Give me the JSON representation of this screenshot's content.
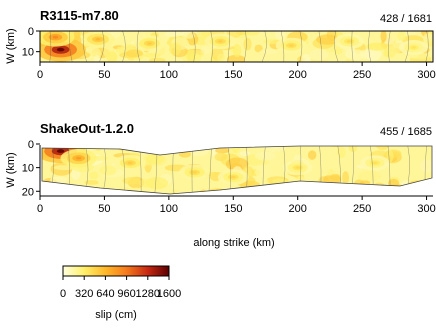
{
  "chart_data": [
    {
      "type": "heatmap",
      "title": "R3115-m7.80",
      "annotation": "428 / 1681",
      "xlabel": "",
      "ylabel": "W (km)",
      "xlim": [
        0,
        305
      ],
      "ylim": [
        0,
        15
      ],
      "x_ticks": [
        "0",
        "50",
        "100",
        "150",
        "200",
        "250",
        "300"
      ],
      "y_ticks": [
        "0",
        "10"
      ],
      "hotspots": [
        {
          "x": 16,
          "y": 9,
          "slip": 1600
        },
        {
          "x": 12,
          "y": 3,
          "slip": 900
        },
        {
          "x": 45,
          "y": 4,
          "slip": 650
        },
        {
          "x": 85,
          "y": 6,
          "slip": 550
        },
        {
          "x": 140,
          "y": 5,
          "slip": 520
        },
        {
          "x": 195,
          "y": 7,
          "slip": 500
        },
        {
          "x": 240,
          "y": 5,
          "slip": 450
        },
        {
          "x": 290,
          "y": 8,
          "slip": 400
        }
      ]
    },
    {
      "type": "heatmap",
      "title": "ShakeOut-1.2.0",
      "annotation": "455 / 1685",
      "xlabel": "along strike (km)",
      "ylabel": "W (km)",
      "xlim": [
        0,
        305
      ],
      "ylim": [
        0,
        22
      ],
      "x_ticks": [
        "0",
        "50",
        "100",
        "150",
        "200",
        "250",
        "300"
      ],
      "y_ticks": [
        "0",
        "10",
        "20"
      ],
      "hotspots": [
        {
          "x": 16,
          "y": 3,
          "slip": 1600
        },
        {
          "x": 30,
          "y": 6,
          "slip": 800
        },
        {
          "x": 70,
          "y": 8,
          "slip": 550
        },
        {
          "x": 120,
          "y": 12,
          "slip": 500
        },
        {
          "x": 150,
          "y": 14,
          "slip": 480
        },
        {
          "x": 200,
          "y": 10,
          "slip": 450
        },
        {
          "x": 260,
          "y": 8,
          "slip": 420
        }
      ]
    }
  ],
  "colorbar": {
    "label": "slip (cm)",
    "ticks": [
      "0",
      "320",
      "640",
      "960",
      "1280",
      "1600"
    ],
    "colors": [
      "#ffffe0",
      "#fff06a",
      "#ffb82a",
      "#f57a1c",
      "#c72812",
      "#5a0000"
    ]
  }
}
